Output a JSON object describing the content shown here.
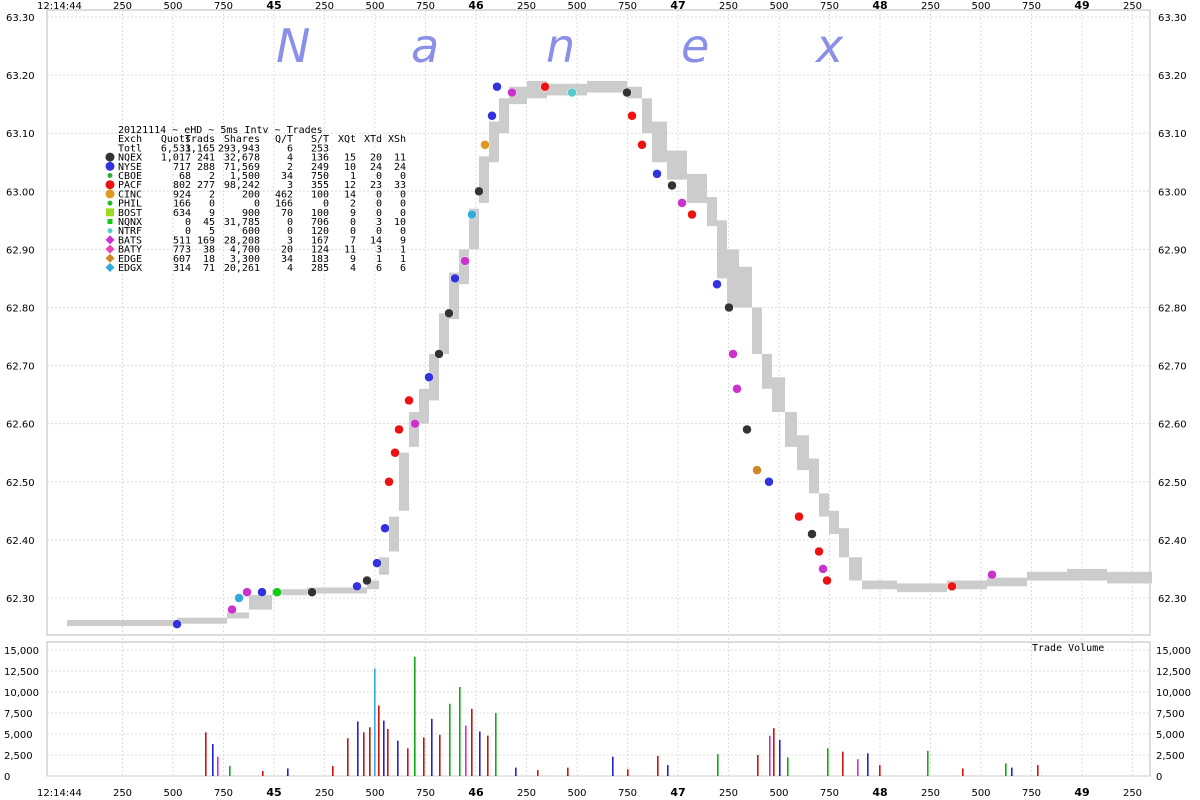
{
  "chart_data": {
    "type": "scatter",
    "watermark": [
      "N",
      "a",
      "n",
      "e",
      "x"
    ],
    "time_start_label": "12:14:44",
    "minute_labels": [
      "45",
      "46",
      "47",
      "48",
      "49"
    ],
    "ms_labels": [
      "250",
      "500",
      "750"
    ],
    "price_axis": {
      "ticks": [
        "63.30",
        "63.20",
        "63.10",
        "63.00",
        "62.90",
        "62.80",
        "62.70",
        "62.60",
        "62.50",
        "62.40",
        "62.30"
      ],
      "ylim": [
        62.25,
        63.3
      ]
    },
    "volume_axis": {
      "title": "Trade Volume",
      "ticks": [
        "15,000",
        "12,500",
        "10,000",
        "7,500",
        "5,000",
        "2,500",
        "0"
      ],
      "ylim": [
        0,
        15000
      ]
    },
    "legend": {
      "title": "20121114 ~ eHD ~ 5ms Intv ~ Trades",
      "header": [
        "Exch",
        "Quots",
        "Trads",
        "Shares",
        "Q/T",
        "S/T",
        "XQt",
        "XTd",
        "XSh"
      ],
      "total_row": [
        "Totl",
        "6,533",
        "1,165",
        "293,943",
        "6",
        "253",
        "",
        "",
        ""
      ],
      "rows": [
        {
          "marker": "octagon",
          "color": "#333333",
          "cells": [
            "NQEX",
            "1,017",
            "241",
            "32,678",
            "4",
            "136",
            "15",
            "20",
            "11"
          ]
        },
        {
          "marker": "circle",
          "color": "#3333dd",
          "cells": [
            "NYSE",
            "717",
            "288",
            "71,569",
            "2",
            "249",
            "10",
            "24",
            "24"
          ]
        },
        {
          "marker": "dot",
          "color": "#33aa33",
          "cells": [
            "CBOE",
            "68",
            "2",
            "1,500",
            "34",
            "750",
            "1",
            "0",
            "0"
          ]
        },
        {
          "marker": "circle",
          "color": "#ee1111",
          "cells": [
            "PACF",
            "802",
            "277",
            "98,242",
            "3",
            "355",
            "12",
            "23",
            "33"
          ]
        },
        {
          "marker": "circle",
          "color": "#dd9922",
          "cells": [
            "CINC",
            "924",
            "2",
            "200",
            "462",
            "100",
            "14",
            "0",
            "0"
          ]
        },
        {
          "marker": "dot",
          "color": "#22bb22",
          "cells": [
            "PHIL",
            "166",
            "0",
            "0",
            "166",
            "0",
            "2",
            "0",
            "0"
          ]
        },
        {
          "marker": "square",
          "color": "#99dd22",
          "cells": [
            "BOST",
            "634",
            "9",
            "900",
            "70",
            "100",
            "9",
            "0",
            "0"
          ]
        },
        {
          "marker": "smallsquare",
          "color": "#11cc11",
          "cells": [
            "NQNX",
            "0",
            "45",
            "31,785",
            "0",
            "706",
            "0",
            "3",
            "10"
          ]
        },
        {
          "marker": "dot",
          "color": "#55cccc",
          "cells": [
            "NTRF",
            "0",
            "5",
            "600",
            "0",
            "120",
            "0",
            "0",
            "0"
          ]
        },
        {
          "marker": "diamond",
          "color": "#cc33cc",
          "cells": [
            "BATS",
            "511",
            "169",
            "28,208",
            "3",
            "167",
            "7",
            "14",
            "9"
          ]
        },
        {
          "marker": "diamond",
          "color": "#ee44bb",
          "cells": [
            "BATY",
            "773",
            "38",
            "4,700",
            "20",
            "124",
            "11",
            "3",
            "1"
          ]
        },
        {
          "marker": "diamond",
          "color": "#cc8822",
          "cells": [
            "EDGE",
            "607",
            "18",
            "3,300",
            "34",
            "183",
            "9",
            "1",
            "1"
          ]
        },
        {
          "marker": "diamond",
          "color": "#33aadd",
          "cells": [
            "EDGX",
            "314",
            "71",
            "20,261",
            "4",
            "285",
            "4",
            "6",
            "6"
          ]
        }
      ]
    },
    "nbbo_band": [
      [
        0,
        62.255,
        62.262
      ],
      [
        110,
        62.257,
        62.266
      ],
      [
        160,
        62.265,
        62.275
      ],
      [
        182,
        62.28,
        62.305
      ],
      [
        205,
        62.305,
        62.315
      ],
      [
        240,
        62.31,
        62.318
      ],
      [
        280,
        62.31,
        62.318
      ],
      [
        300,
        62.315,
        62.33
      ],
      [
        312,
        62.34,
        62.37
      ],
      [
        322,
        62.38,
        62.44
      ],
      [
        332,
        62.45,
        62.55
      ],
      [
        342,
        62.56,
        62.62
      ],
      [
        352,
        62.6,
        62.66
      ],
      [
        362,
        62.64,
        62.72
      ],
      [
        372,
        62.72,
        62.79
      ],
      [
        382,
        62.78,
        62.86
      ],
      [
        392,
        62.84,
        62.9
      ],
      [
        402,
        62.9,
        62.97
      ],
      [
        412,
        62.98,
        63.06
      ],
      [
        422,
        63.05,
        63.12
      ],
      [
        432,
        63.1,
        63.16
      ],
      [
        442,
        63.15,
        63.18
      ],
      [
        460,
        63.16,
        63.19
      ],
      [
        480,
        63.165,
        63.185
      ],
      [
        520,
        63.17,
        63.19
      ],
      [
        560,
        63.16,
        63.18
      ],
      [
        575,
        63.1,
        63.16
      ],
      [
        585,
        63.05,
        63.12
      ],
      [
        600,
        63.02,
        63.07
      ],
      [
        620,
        62.98,
        63.03
      ],
      [
        640,
        62.94,
        62.99
      ],
      [
        650,
        62.85,
        62.95
      ],
      [
        660,
        62.8,
        62.9
      ],
      [
        672,
        62.8,
        62.87
      ],
      [
        685,
        62.72,
        62.8
      ],
      [
        695,
        62.66,
        62.72
      ],
      [
        705,
        62.62,
        62.68
      ],
      [
        718,
        62.56,
        62.62
      ],
      [
        730,
        62.52,
        62.58
      ],
      [
        742,
        62.48,
        62.54
      ],
      [
        752,
        62.44,
        62.48
      ],
      [
        762,
        62.41,
        62.45
      ],
      [
        772,
        62.37,
        62.42
      ],
      [
        782,
        62.33,
        62.37
      ],
      [
        795,
        62.315,
        62.33
      ],
      [
        830,
        62.31,
        62.325
      ],
      [
        880,
        62.315,
        62.33
      ],
      [
        920,
        62.32,
        62.335
      ],
      [
        960,
        62.33,
        62.345
      ],
      [
        1000,
        62.33,
        62.35
      ],
      [
        1040,
        62.325,
        62.345
      ]
    ],
    "trade_points": [
      [
        110,
        62.255,
        "#3333dd"
      ],
      [
        165,
        62.28,
        "#cc33cc"
      ],
      [
        172,
        62.3,
        "#33aadd"
      ],
      [
        180,
        62.31,
        "#cc33cc"
      ],
      [
        195,
        62.31,
        "#3333dd"
      ],
      [
        210,
        62.31,
        "#11cc11"
      ],
      [
        245,
        62.31,
        "#333333"
      ],
      [
        290,
        62.32,
        "#3333dd"
      ],
      [
        300,
        62.33,
        "#333333"
      ],
      [
        310,
        62.36,
        "#3333dd"
      ],
      [
        318,
        62.42,
        "#3333dd"
      ],
      [
        322,
        62.5,
        "#ee1111"
      ],
      [
        328,
        62.55,
        "#ee1111"
      ],
      [
        332,
        62.59,
        "#ee1111"
      ],
      [
        342,
        62.64,
        "#ee1111"
      ],
      [
        348,
        62.6,
        "#cc33cc"
      ],
      [
        362,
        62.68,
        "#3333dd"
      ],
      [
        372,
        62.72,
        "#333333"
      ],
      [
        382,
        62.79,
        "#333333"
      ],
      [
        388,
        62.85,
        "#3333dd"
      ],
      [
        398,
        62.88,
        "#cc33cc"
      ],
      [
        405,
        62.96,
        "#33aadd"
      ],
      [
        412,
        63.0,
        "#333333"
      ],
      [
        418,
        63.08,
        "#dd9922"
      ],
      [
        425,
        63.13,
        "#3333dd"
      ],
      [
        430,
        63.18,
        "#3333dd"
      ],
      [
        445,
        63.17,
        "#cc33cc"
      ],
      [
        478,
        63.18,
        "#ee1111"
      ],
      [
        505,
        63.17,
        "#55cccc"
      ],
      [
        560,
        63.17,
        "#333333"
      ],
      [
        565,
        63.13,
        "#ee1111"
      ],
      [
        575,
        63.08,
        "#ee1111"
      ],
      [
        590,
        63.03,
        "#3333dd"
      ],
      [
        605,
        63.01,
        "#333333"
      ],
      [
        615,
        62.98,
        "#cc33cc"
      ],
      [
        625,
        62.96,
        "#ee1111"
      ],
      [
        650,
        62.84,
        "#3333dd"
      ],
      [
        662,
        62.8,
        "#333333"
      ],
      [
        666,
        62.72,
        "#cc33cc"
      ],
      [
        670,
        62.66,
        "#cc33cc"
      ],
      [
        680,
        62.59,
        "#333333"
      ],
      [
        690,
        62.52,
        "#cc8822"
      ],
      [
        702,
        62.5,
        "#3333dd"
      ],
      [
        732,
        62.44,
        "#ee1111"
      ],
      [
        745,
        62.41,
        "#333333"
      ],
      [
        752,
        62.38,
        "#ee1111"
      ],
      [
        756,
        62.35,
        "#cc33cc"
      ],
      [
        760,
        62.33,
        "#ee1111"
      ],
      [
        885,
        62.32,
        "#ee1111"
      ],
      [
        925,
        62.34,
        "#cc33cc"
      ]
    ],
    "volume_bars": [
      [
        138,
        5200,
        "#cc1111"
      ],
      [
        145,
        3800,
        "#2222cc"
      ],
      [
        150,
        2300,
        "#cc33cc"
      ],
      [
        162,
        1200,
        "#11aa11"
      ],
      [
        195,
        600,
        "#cc1111"
      ],
      [
        220,
        900,
        "#2222cc"
      ],
      [
        265,
        1200,
        "#cc1111"
      ],
      [
        280,
        4500,
        "#cc1111"
      ],
      [
        290,
        6500,
        "#2222cc"
      ],
      [
        296,
        5200,
        "#cc1111"
      ],
      [
        302,
        5800,
        "#cc1111"
      ],
      [
        307,
        12800,
        "#33aadd"
      ],
      [
        311,
        8400,
        "#cc1111"
      ],
      [
        316,
        6600,
        "#2222cc"
      ],
      [
        320,
        5600,
        "#cc1111"
      ],
      [
        330,
        4200,
        "#2222cc"
      ],
      [
        340,
        3300,
        "#cc1111"
      ],
      [
        347,
        14200,
        "#11aa11"
      ],
      [
        356,
        4600,
        "#cc1111"
      ],
      [
        364,
        6800,
        "#2222cc"
      ],
      [
        372,
        4900,
        "#cc1111"
      ],
      [
        382,
        8600,
        "#11aa11"
      ],
      [
        392,
        10600,
        "#11aa11"
      ],
      [
        398,
        6000,
        "#cc33cc"
      ],
      [
        404,
        8000,
        "#cc1111"
      ],
      [
        412,
        5300,
        "#2222cc"
      ],
      [
        420,
        4800,
        "#cc1111"
      ],
      [
        428,
        7500,
        "#11aa11"
      ],
      [
        448,
        1000,
        "#2222cc"
      ],
      [
        470,
        700,
        "#cc1111"
      ],
      [
        500,
        1000,
        "#cc1111"
      ],
      [
        545,
        2300,
        "#2222cc"
      ],
      [
        560,
        800,
        "#cc1111"
      ],
      [
        590,
        2400,
        "#cc1111"
      ],
      [
        600,
        1300,
        "#2222cc"
      ],
      [
        650,
        2600,
        "#11aa11"
      ],
      [
        690,
        2500,
        "#cc1111"
      ],
      [
        702,
        4800,
        "#cc33cc"
      ],
      [
        706,
        5700,
        "#cc1111"
      ],
      [
        712,
        4300,
        "#2222cc"
      ],
      [
        720,
        2200,
        "#11aa11"
      ],
      [
        760,
        3300,
        "#11aa11"
      ],
      [
        775,
        2900,
        "#cc1111"
      ],
      [
        790,
        2000,
        "#cc33cc"
      ],
      [
        800,
        2700,
        "#2222cc"
      ],
      [
        812,
        1300,
        "#cc1111"
      ],
      [
        860,
        3000,
        "#11aa11"
      ],
      [
        895,
        900,
        "#cc1111"
      ],
      [
        938,
        1500,
        "#11aa11"
      ],
      [
        944,
        1000,
        "#2222cc"
      ],
      [
        970,
        1300,
        "#cc1111"
      ]
    ],
    "grid": true
  }
}
